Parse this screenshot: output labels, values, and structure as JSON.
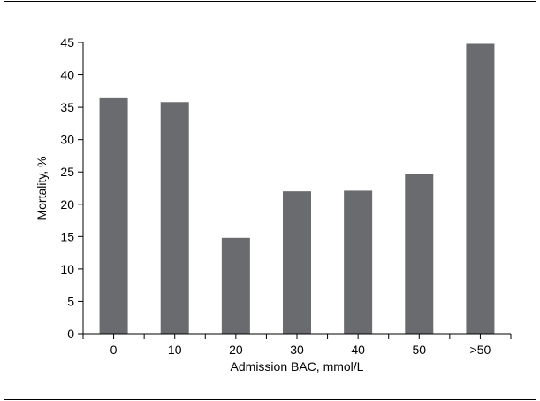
{
  "chart_data": {
    "type": "bar",
    "categories": [
      "0",
      "10",
      "20",
      "30",
      "40",
      "50",
      ">50"
    ],
    "values": [
      36.4,
      35.8,
      14.8,
      22.0,
      22.1,
      24.7,
      44.8
    ],
    "xlabel": "Admission BAC, mmol/L",
    "ylabel": "Mortality, %",
    "ylim": [
      0,
      45
    ],
    "yticks": [
      0,
      5,
      10,
      15,
      20,
      25,
      30,
      35,
      40,
      45
    ],
    "grid": false,
    "legend": "none",
    "bar_color": "#6a6b6e"
  }
}
